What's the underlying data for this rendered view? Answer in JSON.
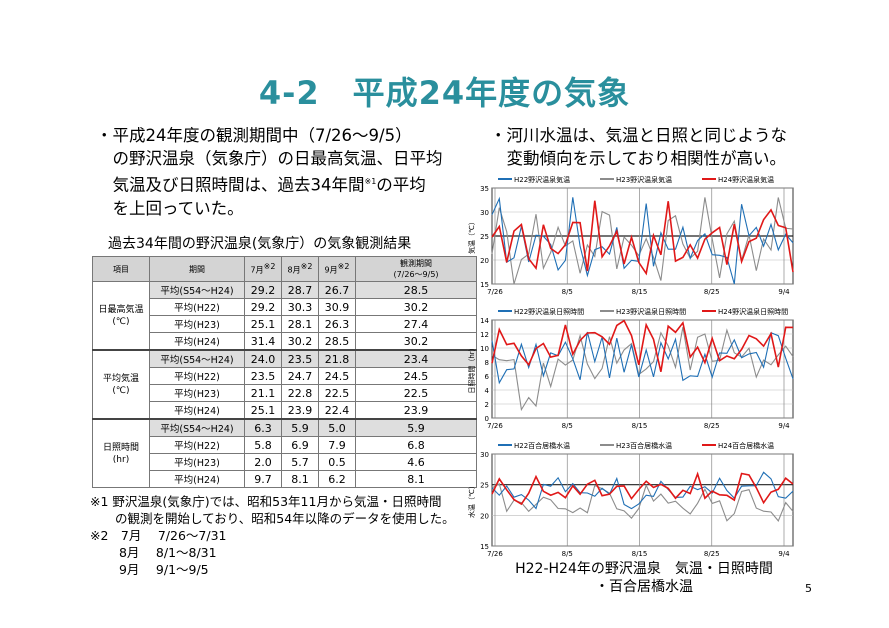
{
  "title": "4-2　平成24年度の気象",
  "bullet_left": [
    "・平成24年度の観測期間中（7/26～9/5）",
    "　の野沢温泉（気象庁）の日最高気温、日平均",
    "　気温及び日照時間は、過去34年間",
    "　を上回っていた。"
  ],
  "bullet_left_sup": "※1",
  "bullet_left_tail": "の平均",
  "bullet_right": [
    "・河川水温は、気温と日照と同じような",
    "　変動傾向を示しており相関性が高い。"
  ],
  "table": {
    "title": "過去34年間の野沢温泉(気象庁）の気象観測結果",
    "headers": {
      "item": "項目",
      "period": "期間",
      "jul": "7月",
      "aug": "8月",
      "sep": "9月",
      "obs": "観測期間",
      "obs2": "(7/26～9/5)",
      "mark": "※2"
    },
    "groups": [
      {
        "name": "日最高気温",
        "unit": "(℃)",
        "rows": [
          {
            "period": "平均(S54～H24)",
            "values": [
              "29.2",
              "28.7",
              "26.7",
              "28.5"
            ]
          },
          {
            "period": "平均(H22)",
            "values": [
              "29.2",
              "30.3",
              "30.9",
              "30.2"
            ]
          },
          {
            "period": "平均(H23)",
            "values": [
              "25.1",
              "28.1",
              "26.3",
              "27.4"
            ]
          },
          {
            "period": "平均(H24)",
            "values": [
              "31.4",
              "30.2",
              "28.5",
              "30.2"
            ]
          }
        ]
      },
      {
        "name": "平均気温",
        "unit": "(℃)",
        "rows": [
          {
            "period": "平均(S54～H24)",
            "values": [
              "24.0",
              "23.5",
              "21.8",
              "23.4"
            ]
          },
          {
            "period": "平均(H22)",
            "values": [
              "23.5",
              "24.7",
              "24.5",
              "24.5"
            ]
          },
          {
            "period": "平均(H23)",
            "values": [
              "21.1",
              "22.8",
              "22.5",
              "22.5"
            ]
          },
          {
            "period": "平均(H24)",
            "values": [
              "25.1",
              "23.9",
              "22.4",
              "23.9"
            ]
          }
        ]
      },
      {
        "name": "日照時間",
        "unit": "(hr)",
        "rows": [
          {
            "period": "平均(S54～H24)",
            "values": [
              "6.3",
              "5.9",
              "5.0",
              "5.9"
            ]
          },
          {
            "period": "平均(H22)",
            "values": [
              "5.8",
              "6.9",
              "7.9",
              "6.8"
            ]
          },
          {
            "period": "平均(H23)",
            "values": [
              "2.0",
              "5.7",
              "0.5",
              "4.6"
            ]
          },
          {
            "period": "平均(H24)",
            "values": [
              "9.7",
              "8.1",
              "6.2",
              "8.1"
            ]
          }
        ]
      }
    ]
  },
  "notes": [
    "※1 野沢温泉(気象庁)では、昭和53年11月から気温・日照時間",
    "　　の観測を開始しており、昭和54年以降のデータを使用した。",
    "※2　7月　 7/26～7/31",
    "　　 8月　 8/1～8/31",
    "　　 9月　 9/1～9/5"
  ],
  "caption": [
    "H22-H24年の野沢温泉　気温・日照時間",
    "・百合居橋水温"
  ],
  "page_number": "5",
  "colors": {
    "title": "#2a8f9d",
    "h22": "#1f6fb5",
    "h23": "#8c8c8c",
    "h24": "#e01818"
  },
  "chart_data": [
    {
      "type": "line",
      "legend": [
        "H22野沢温泉気温",
        "H23野沢温泉気温",
        "H24野沢温泉気温"
      ],
      "ylabel": "気温（℃）",
      "yticks": [
        "15",
        "20",
        "25",
        "30",
        "35"
      ],
      "ylim": [
        15,
        35
      ],
      "xticks": [
        "7/26",
        "8/5",
        "8/15",
        "8/25",
        "9/4"
      ]
    },
    {
      "type": "line",
      "legend": [
        "H22野沢温泉日照時間",
        "H23野沢温泉日照時間",
        "H24野沢温泉日照時間"
      ],
      "ylabel": "日照時間（hr）",
      "yticks": [
        "0",
        "2",
        "4",
        "6",
        "8",
        "10",
        "12",
        "14"
      ],
      "ylim": [
        0,
        14
      ],
      "xticks": [
        "7/26",
        "8/5",
        "8/15",
        "8/25",
        "9/4"
      ]
    },
    {
      "type": "line",
      "legend": [
        "H22百合居橋水温",
        "H23百合居橋水温",
        "H24百合居橋水温"
      ],
      "ylabel": "水温（℃）",
      "yticks": [
        "15",
        "20",
        "25",
        "30"
      ],
      "ylim": [
        15,
        30
      ],
      "xticks": [
        "7/26",
        "8/5",
        "8/15",
        "8/25",
        "9/4"
      ]
    }
  ]
}
